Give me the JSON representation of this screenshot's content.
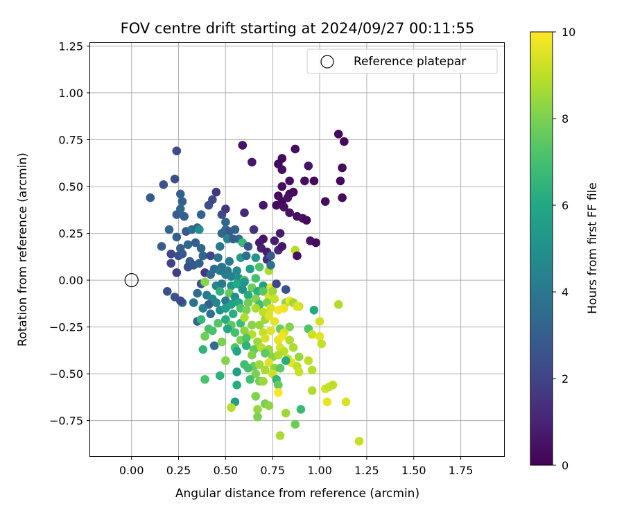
{
  "chart_data": {
    "type": "scatter",
    "title": "FOV centre drift starting at 2024/09/27 00:11:55",
    "xlabel": "Angular distance from reference (arcmin)",
    "ylabel": "Rotation from reference (arcmin)",
    "xlim": [
      -0.22,
      1.98
    ],
    "ylim": [
      -0.94,
      1.27
    ],
    "x_ticks": [
      "0.00",
      "0.25",
      "0.50",
      "0.75",
      "1.00",
      "1.25",
      "1.50",
      "1.75"
    ],
    "y_ticks": [
      "−0.75",
      "−0.50",
      "−0.25",
      "0.00",
      "0.25",
      "0.50",
      "0.75",
      "1.00",
      "1.25"
    ],
    "grid": true,
    "legend": {
      "position": "top-right",
      "entries": [
        "Reference platepar"
      ]
    },
    "reference_point": {
      "x": 0.0,
      "y": 0.0,
      "marker": "open-circle"
    },
    "colorbar": {
      "label": "Hours from first FF file",
      "range": [
        0,
        10
      ],
      "ticks": [
        "0",
        "2",
        "4",
        "6",
        "8",
        "10"
      ],
      "colormap": "viridis"
    },
    "points": [
      [
        1.1,
        0.78,
        0.2
      ],
      [
        1.13,
        0.74,
        0.2
      ],
      [
        0.59,
        0.72,
        0.5
      ],
      [
        0.87,
        0.7,
        0.3
      ],
      [
        0.24,
        0.69,
        2.2
      ],
      [
        0.64,
        0.63,
        0.6
      ],
      [
        0.8,
        0.65,
        0.2
      ],
      [
        0.78,
        0.62,
        0.3
      ],
      [
        0.8,
        0.59,
        0.4
      ],
      [
        0.94,
        0.61,
        0.5
      ],
      [
        1.12,
        0.6,
        0.2
      ],
      [
        0.23,
        0.54,
        2.4
      ],
      [
        0.17,
        0.51,
        2.5
      ],
      [
        0.45,
        0.47,
        1.6
      ],
      [
        0.8,
        0.5,
        0.3
      ],
      [
        0.84,
        0.53,
        0.4
      ],
      [
        0.92,
        0.53,
        0.3
      ],
      [
        0.97,
        0.53,
        0.2
      ],
      [
        1.11,
        0.53,
        0.2
      ],
      [
        0.84,
        0.46,
        0.3
      ],
      [
        0.86,
        0.47,
        0.2
      ],
      [
        0.78,
        0.45,
        0.3
      ],
      [
        0.8,
        0.42,
        0.2
      ],
      [
        0.77,
        0.4,
        0.3
      ],
      [
        0.81,
        0.39,
        0.4
      ],
      [
        0.83,
        0.44,
        0.5
      ],
      [
        0.1,
        0.44,
        2.8
      ],
      [
        0.26,
        0.46,
        3.0
      ],
      [
        0.41,
        0.4,
        2.4
      ],
      [
        0.43,
        0.43,
        2.2
      ],
      [
        0.27,
        0.42,
        3.1
      ],
      [
        0.26,
        0.38,
        3.3
      ],
      [
        0.24,
        0.35,
        2.9
      ],
      [
        0.28,
        0.34,
        3.0
      ],
      [
        0.37,
        0.35,
        3.2
      ],
      [
        0.5,
        0.38,
        1.5
      ],
      [
        0.6,
        0.36,
        1.2
      ],
      [
        0.7,
        0.4,
        0.6
      ],
      [
        0.84,
        0.36,
        0.5
      ],
      [
        0.88,
        0.34,
        0.4
      ],
      [
        0.91,
        0.33,
        0.5
      ],
      [
        0.93,
        0.32,
        0.3
      ],
      [
        1.03,
        0.42,
        0.3
      ],
      [
        1.12,
        0.44,
        0.2
      ],
      [
        0.48,
        0.35,
        2.2
      ],
      [
        0.2,
        0.27,
        3.2
      ],
      [
        0.29,
        0.26,
        2.8
      ],
      [
        0.32,
        0.27,
        3.6
      ],
      [
        0.35,
        0.28,
        3.1
      ],
      [
        0.5,
        0.31,
        3.3
      ],
      [
        0.5,
        0.27,
        3.5
      ],
      [
        0.52,
        0.26,
        2.8
      ],
      [
        0.55,
        0.27,
        3.1
      ],
      [
        0.65,
        0.27,
        1.4
      ],
      [
        0.79,
        0.25,
        0.8
      ],
      [
        0.24,
        0.23,
        3.0
      ],
      [
        0.36,
        0.27,
        4.9
      ],
      [
        0.48,
        0.25,
        3.3
      ],
      [
        0.51,
        0.22,
        4.5
      ],
      [
        0.57,
        0.22,
        3.6
      ],
      [
        0.59,
        0.2,
        6.7
      ],
      [
        0.7,
        0.22,
        0.5
      ],
      [
        0.76,
        0.21,
        0.8
      ],
      [
        0.68,
        0.2,
        0.7
      ],
      [
        0.95,
        0.21,
        0.6
      ],
      [
        0.98,
        0.2,
        0.3
      ],
      [
        0.16,
        0.18,
        2.9
      ],
      [
        0.26,
        0.17,
        3.1
      ],
      [
        0.3,
        0.19,
        3.3
      ],
      [
        0.34,
        0.2,
        3.0
      ],
      [
        0.37,
        0.17,
        3.4
      ],
      [
        0.47,
        0.18,
        4.0
      ],
      [
        0.54,
        0.22,
        3.0
      ],
      [
        0.62,
        0.18,
        2.6
      ],
      [
        0.69,
        0.17,
        0.9
      ],
      [
        0.72,
        0.15,
        0.7
      ],
      [
        0.78,
        0.16,
        1.1
      ],
      [
        0.8,
        0.18,
        0.6
      ],
      [
        0.87,
        0.16,
        8.9
      ],
      [
        0.88,
        0.13,
        0.4
      ],
      [
        0.21,
        0.14,
        2.0
      ],
      [
        0.25,
        0.13,
        2.4
      ],
      [
        0.27,
        0.14,
        2.7
      ],
      [
        0.31,
        0.1,
        2.9
      ],
      [
        0.38,
        0.13,
        3.3
      ],
      [
        0.42,
        0.13,
        2.1
      ],
      [
        0.46,
        0.12,
        3.8
      ],
      [
        0.52,
        0.1,
        4.1
      ],
      [
        0.58,
        0.12,
        5.5
      ],
      [
        0.61,
        0.13,
        3.6
      ],
      [
        0.66,
        0.12,
        5.2
      ],
      [
        0.72,
        0.11,
        1.3
      ],
      [
        0.74,
        0.13,
        2.7
      ],
      [
        0.21,
        0.09,
        2.0
      ],
      [
        0.3,
        0.07,
        2.4
      ],
      [
        0.33,
        0.08,
        2.8
      ],
      [
        0.36,
        0.09,
        3.0
      ],
      [
        0.39,
        0.04,
        1.6
      ],
      [
        0.44,
        0.06,
        3.5
      ],
      [
        0.48,
        0.07,
        3.8
      ],
      [
        0.51,
        0.05,
        4.1
      ],
      [
        0.56,
        0.05,
        4.7
      ],
      [
        0.63,
        0.06,
        5.6
      ],
      [
        0.68,
        0.07,
        7.2
      ],
      [
        0.73,
        0.05,
        8.8
      ],
      [
        0.74,
        0.08,
        3.8
      ],
      [
        0.24,
        0.04,
        1.8
      ],
      [
        0.42,
        0.03,
        3.5
      ],
      [
        0.47,
        0.05,
        4.0
      ],
      [
        0.5,
        0.03,
        4.2
      ],
      [
        0.53,
        0.02,
        4.4
      ],
      [
        0.57,
        0.01,
        5.0
      ],
      [
        0.6,
        0.0,
        7.4
      ],
      [
        0.66,
        0.01,
        7.0
      ],
      [
        0.37,
        -0.02,
        2.5
      ],
      [
        0.39,
        -0.01,
        8.2
      ],
      [
        0.45,
        -0.03,
        4.5
      ],
      [
        0.48,
        -0.02,
        4.1
      ],
      [
        0.53,
        -0.03,
        5.3
      ],
      [
        0.56,
        -0.02,
        6.0
      ],
      [
        0.6,
        -0.01,
        5.2
      ],
      [
        0.64,
        -0.04,
        7.7
      ],
      [
        0.67,
        -0.06,
        6.3
      ],
      [
        0.7,
        -0.03,
        5.6
      ],
      [
        0.74,
        -0.04,
        9.7
      ],
      [
        0.77,
        -0.02,
        2.2
      ],
      [
        0.82,
        -0.05,
        2.5
      ],
      [
        0.19,
        -0.06,
        2.4
      ],
      [
        0.23,
        -0.09,
        2.6
      ],
      [
        0.27,
        -0.12,
        3.4
      ],
      [
        0.35,
        -0.07,
        3.5
      ],
      [
        0.4,
        -0.08,
        4.1
      ],
      [
        0.43,
        -0.1,
        4.6
      ],
      [
        0.47,
        -0.06,
        6.4
      ],
      [
        0.52,
        -0.07,
        7.6
      ],
      [
        0.55,
        -0.09,
        4.9
      ],
      [
        0.59,
        -0.05,
        5.0
      ],
      [
        0.62,
        -0.08,
        6.1
      ],
      [
        0.66,
        -0.1,
        8.1
      ],
      [
        0.7,
        -0.06,
        7.4
      ],
      [
        0.73,
        -0.09,
        9.4
      ],
      [
        0.75,
        -0.06,
        8.5
      ],
      [
        0.26,
        -0.11,
        2.2
      ],
      [
        0.33,
        -0.12,
        3.8
      ],
      [
        0.41,
        -0.13,
        3.0
      ],
      [
        0.45,
        -0.12,
        4.5
      ],
      [
        0.5,
        -0.11,
        4.0
      ],
      [
        0.53,
        -0.13,
        5.7
      ],
      [
        0.57,
        -0.12,
        5.9
      ],
      [
        0.62,
        -0.12,
        7.8
      ],
      [
        0.68,
        -0.13,
        6.9
      ],
      [
        0.72,
        -0.12,
        8.0
      ],
      [
        0.76,
        -0.1,
        9.2
      ],
      [
        0.82,
        -0.12,
        8.3
      ],
      [
        0.84,
        -0.11,
        9.7
      ],
      [
        0.86,
        -0.12,
        8.6
      ],
      [
        0.89,
        -0.14,
        9.1
      ],
      [
        0.38,
        -0.15,
        4.3
      ],
      [
        0.42,
        -0.18,
        3.7
      ],
      [
        0.47,
        -0.16,
        5.0
      ],
      [
        0.5,
        -0.15,
        5.5
      ],
      [
        0.54,
        -0.18,
        6.3
      ],
      [
        0.58,
        -0.15,
        7.2
      ],
      [
        0.61,
        -0.16,
        8.0
      ],
      [
        0.66,
        -0.15,
        8.7
      ],
      [
        0.7,
        -0.17,
        9.0
      ],
      [
        0.74,
        -0.15,
        9.4
      ],
      [
        0.78,
        -0.16,
        9.9
      ],
      [
        0.81,
        -0.15,
        9.7
      ],
      [
        0.88,
        -0.14,
        9.5
      ],
      [
        0.97,
        -0.16,
        6.1
      ],
      [
        1.1,
        -0.13,
        8.8
      ],
      [
        0.35,
        -0.22,
        3.3
      ],
      [
        0.37,
        -0.21,
        6.6
      ],
      [
        0.41,
        -0.26,
        7.1
      ],
      [
        0.46,
        -0.23,
        7.3
      ],
      [
        0.5,
        -0.21,
        6.2
      ],
      [
        0.53,
        -0.24,
        7.5
      ],
      [
        0.58,
        -0.23,
        6.8
      ],
      [
        0.6,
        -0.2,
        8.8
      ],
      [
        0.64,
        -0.24,
        8.2
      ],
      [
        0.68,
        -0.24,
        8.4
      ],
      [
        0.71,
        -0.21,
        8.6
      ],
      [
        0.73,
        -0.19,
        9.5
      ],
      [
        0.76,
        -0.22,
        9.6
      ],
      [
        0.79,
        -0.26,
        7.7
      ],
      [
        0.84,
        -0.25,
        8.1
      ],
      [
        0.94,
        -0.26,
        7.2
      ],
      [
        1.0,
        -0.22,
        9.3
      ],
      [
        0.51,
        -0.26,
        6.0
      ],
      [
        0.55,
        -0.28,
        7.0
      ],
      [
        0.6,
        -0.27,
        8.3
      ],
      [
        0.64,
        -0.29,
        8.9
      ],
      [
        0.7,
        -0.28,
        9.1
      ],
      [
        0.74,
        -0.27,
        9.5
      ],
      [
        0.81,
        -0.28,
        9.4
      ],
      [
        0.96,
        -0.29,
        9.2
      ],
      [
        1.0,
        -0.3,
        9.6
      ],
      [
        0.39,
        -0.3,
        7.8
      ],
      [
        0.43,
        -0.27,
        7.1
      ],
      [
        0.58,
        -0.32,
        8.0
      ],
      [
        0.61,
        -0.31,
        7.2
      ],
      [
        0.67,
        -0.33,
        8.5
      ],
      [
        0.71,
        -0.31,
        9.4
      ],
      [
        0.78,
        -0.32,
        9.6
      ],
      [
        0.8,
        -0.3,
        9.8
      ],
      [
        0.84,
        -0.32,
        8.8
      ],
      [
        0.38,
        -0.37,
        6.5
      ],
      [
        0.44,
        -0.35,
        3.5
      ],
      [
        0.48,
        -0.33,
        8.0
      ],
      [
        0.55,
        -0.36,
        7.2
      ],
      [
        0.61,
        -0.35,
        6.4
      ],
      [
        0.65,
        -0.37,
        7.6
      ],
      [
        0.69,
        -0.36,
        8.9
      ],
      [
        0.73,
        -0.37,
        8.5
      ],
      [
        0.79,
        -0.36,
        9.4
      ],
      [
        0.81,
        -0.38,
        9.0
      ],
      [
        0.86,
        -0.36,
        8.7
      ],
      [
        1.01,
        -0.34,
        9.1
      ],
      [
        0.56,
        -0.38,
        5.9
      ],
      [
        0.64,
        -0.4,
        8.1
      ],
      [
        0.71,
        -0.39,
        7.5
      ],
      [
        0.75,
        -0.41,
        8.2
      ],
      [
        0.78,
        -0.4,
        8.8
      ],
      [
        0.83,
        -0.42,
        9.1
      ],
      [
        0.85,
        -0.44,
        9.6
      ],
      [
        0.89,
        -0.41,
        8.4
      ],
      [
        0.94,
        -0.43,
        9.0
      ],
      [
        0.5,
        -0.43,
        8.1
      ],
      [
        0.6,
        -0.45,
        6.9
      ],
      [
        0.65,
        -0.46,
        7.7
      ],
      [
        0.68,
        -0.45,
        8.6
      ],
      [
        0.73,
        -0.44,
        9.5
      ],
      [
        0.76,
        -0.47,
        8.3
      ],
      [
        0.82,
        -0.43,
        6.2
      ],
      [
        0.88,
        -0.46,
        9.0
      ],
      [
        0.56,
        -0.49,
        5.6
      ],
      [
        0.62,
        -0.47,
        7.0
      ],
      [
        0.66,
        -0.5,
        8.0
      ],
      [
        0.71,
        -0.48,
        8.7
      ],
      [
        0.75,
        -0.5,
        9.2
      ],
      [
        0.79,
        -0.47,
        7.5
      ],
      [
        0.89,
        -0.49,
        9.2
      ],
      [
        0.96,
        -0.48,
        8.9
      ],
      [
        0.39,
        -0.53,
        7.1
      ],
      [
        0.47,
        -0.51,
        6.4
      ],
      [
        0.56,
        -0.56,
        6.2
      ],
      [
        0.63,
        -0.53,
        7.0
      ],
      [
        0.68,
        -0.54,
        7.9
      ],
      [
        0.7,
        -0.54,
        8.5
      ],
      [
        0.77,
        -0.53,
        6.5
      ],
      [
        0.78,
        -0.56,
        7.6
      ],
      [
        1.03,
        -0.58,
        9.4
      ],
      [
        1.05,
        -0.57,
        9.1
      ],
      [
        1.07,
        -0.56,
        9.0
      ],
      [
        0.96,
        -0.59,
        8.8
      ],
      [
        0.78,
        -0.6,
        9.9
      ],
      [
        0.66,
        -0.62,
        8.1
      ],
      [
        0.55,
        -0.65,
        5.5
      ],
      [
        0.71,
        -0.66,
        7.9
      ],
      [
        0.73,
        -0.67,
        8.3
      ],
      [
        0.53,
        -0.68,
        8.9
      ],
      [
        0.67,
        -0.69,
        8.4
      ],
      [
        0.9,
        -0.69,
        6.7
      ],
      [
        0.82,
        -0.71,
        8.5
      ],
      [
        0.67,
        -0.73,
        8.0
      ],
      [
        0.87,
        -0.77,
        7.8
      ],
      [
        0.79,
        -0.83,
        8.7
      ],
      [
        1.04,
        -0.65,
        9.7
      ],
      [
        1.14,
        -0.65,
        9.4
      ],
      [
        1.21,
        -0.86,
        9.1
      ]
    ]
  }
}
